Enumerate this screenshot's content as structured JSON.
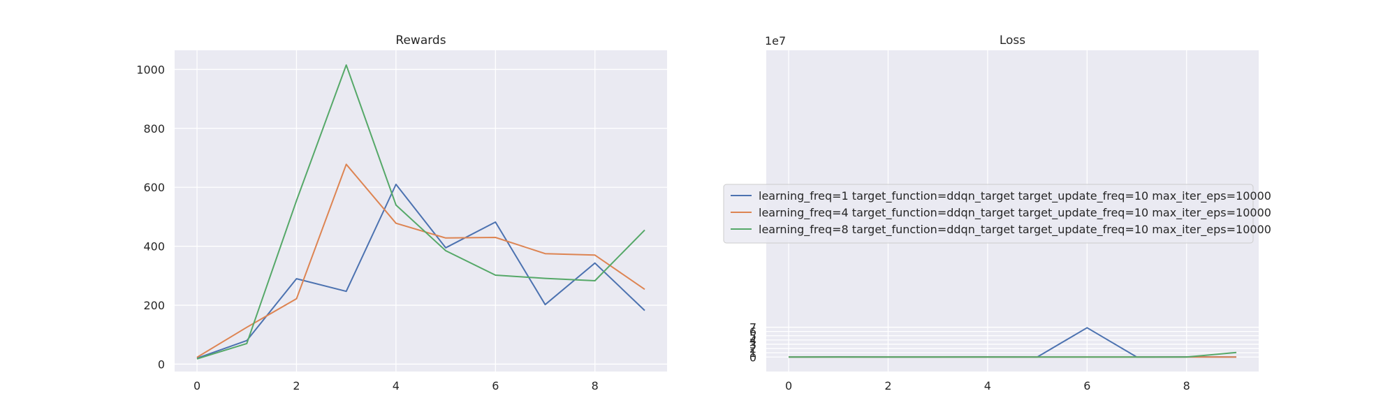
{
  "chart_data": [
    {
      "type": "line",
      "title": "Rewards",
      "xlabel": "",
      "ylabel": "",
      "x": [
        0,
        1,
        2,
        3,
        4,
        5,
        6,
        7,
        8,
        9
      ],
      "xlim": [
        -0.45,
        9.45
      ],
      "ylim": [
        -25,
        1065
      ],
      "xticks": [
        0,
        2,
        4,
        6,
        8
      ],
      "yticks": [
        0,
        200,
        400,
        600,
        800,
        1000
      ],
      "grid": true,
      "series": [
        {
          "color": "#4c72b0",
          "values": [
            20,
            80,
            290,
            247,
            610,
            395,
            482,
            202,
            343,
            182
          ]
        },
        {
          "color": "#dd8452",
          "values": [
            23,
            125,
            222,
            678,
            478,
            428,
            430,
            375,
            370,
            254
          ]
        },
        {
          "color": "#55a868",
          "values": [
            18,
            70,
            555,
            1015,
            540,
            385,
            302,
            291,
            283,
            455
          ]
        }
      ]
    },
    {
      "type": "line",
      "title": "Loss",
      "xlabel": "",
      "ylabel": "",
      "offset_text": "1e7",
      "x": [
        0,
        1,
        2,
        3,
        4,
        5,
        6,
        7,
        8,
        9
      ],
      "xlim": [
        -0.45,
        9.45
      ],
      "ylim": [
        -3.4,
        72
      ],
      "xticks": [
        0,
        2,
        4,
        6,
        8
      ],
      "yticks": [
        0,
        1,
        2,
        3,
        4,
        5,
        6,
        7
      ],
      "grid": true,
      "series": [
        {
          "name": "learning_freq=1 target_function=ddqn_target target_update_freq=10 max_iter_eps=10000",
          "color": "#4c72b0",
          "values": [
            0,
            0.05,
            0.01,
            0.0,
            0.02,
            0.01,
            6.87,
            0.0,
            0.05,
            0.0
          ]
        },
        {
          "name": "learning_freq=4 target_function=ddqn_target target_update_freq=10 max_iter_eps=10000",
          "color": "#dd8452",
          "values": [
            0,
            0.01,
            0.005,
            0.0,
            0.005,
            0.0,
            0.0,
            0.0,
            0.01,
            0.0
          ]
        },
        {
          "name": "learning_freq=8 target_function=ddqn_target target_update_freq=10 max_iter_eps=10000",
          "color": "#55a868",
          "values": [
            0,
            0.0,
            0.01,
            0.0,
            0.0,
            0.0,
            0.0,
            0.0,
            0.0,
            1.07
          ]
        }
      ],
      "legend_location": "center"
    }
  ]
}
